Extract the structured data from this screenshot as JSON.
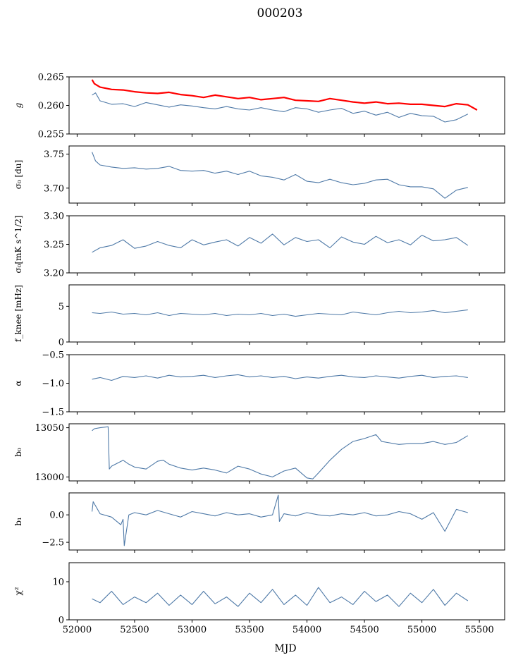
{
  "title": "000203",
  "xlabel": "MJD",
  "x_ticks": [
    "52000",
    "52500",
    "53000",
    "53500",
    "54000",
    "54500",
    "55000",
    "55500"
  ],
  "chart_data": [
    {
      "type": "line",
      "ylabel": "g",
      "xlim": [
        51930,
        55720
      ],
      "ylim": [
        0.255,
        0.265
      ],
      "y_ticks": [
        "0.255",
        "0.260",
        "0.265"
      ],
      "series": [
        {
          "color": "#ff0000",
          "x": [
            52130,
            52150,
            52200,
            52300,
            52400,
            52500,
            52600,
            52700,
            52800,
            52900,
            53000,
            53100,
            53200,
            53300,
            53400,
            53500,
            53600,
            53700,
            53800,
            53900,
            54000,
            54100,
            54200,
            54300,
            54400,
            54500,
            54600,
            54700,
            54800,
            54900,
            55000,
            55100,
            55200,
            55300,
            55400,
            55480
          ],
          "y": [
            0.2645,
            0.2638,
            0.2632,
            0.2628,
            0.2627,
            0.2624,
            0.2622,
            0.2621,
            0.2623,
            0.2619,
            0.2617,
            0.2614,
            0.2618,
            0.2615,
            0.2612,
            0.2614,
            0.261,
            0.2612,
            0.2614,
            0.2609,
            0.2608,
            0.2607,
            0.2612,
            0.2609,
            0.2606,
            0.2604,
            0.2606,
            0.2603,
            0.2604,
            0.2602,
            0.2602,
            0.26,
            0.2598,
            0.2603,
            0.2601,
            0.2592
          ]
        },
        {
          "color": "#4e79a7",
          "x": [
            52130,
            52160,
            52200,
            52300,
            52400,
            52500,
            52600,
            52700,
            52800,
            52900,
            53000,
            53100,
            53200,
            53300,
            53400,
            53500,
            53600,
            53700,
            53800,
            53900,
            54000,
            54100,
            54200,
            54300,
            54400,
            54500,
            54600,
            54700,
            54800,
            54900,
            55000,
            55100,
            55200,
            55300,
            55400
          ],
          "y": [
            0.2618,
            0.2622,
            0.2608,
            0.2602,
            0.2603,
            0.2598,
            0.2605,
            0.2601,
            0.2597,
            0.2601,
            0.2599,
            0.2596,
            0.2594,
            0.2598,
            0.2594,
            0.2592,
            0.2596,
            0.2592,
            0.2589,
            0.2596,
            0.2594,
            0.2588,
            0.2592,
            0.2595,
            0.2586,
            0.259,
            0.2583,
            0.2588,
            0.2579,
            0.2586,
            0.2582,
            0.2581,
            0.2571,
            0.2575,
            0.2585
          ]
        }
      ]
    },
    {
      "type": "line",
      "ylabel": "σ₀ [du]",
      "xlim": [
        51930,
        55720
      ],
      "ylim": [
        3.678,
        3.762
      ],
      "y_ticks": [
        "3.70",
        "3.75"
      ],
      "series": [
        {
          "color": "#4e79a7",
          "x": [
            52130,
            52160,
            52200,
            52300,
            52400,
            52500,
            52600,
            52700,
            52800,
            52900,
            53000,
            53100,
            53200,
            53300,
            53400,
            53500,
            53600,
            53700,
            53800,
            53900,
            54000,
            54100,
            54200,
            54300,
            54400,
            54500,
            54600,
            54700,
            54800,
            54900,
            55000,
            55100,
            55200,
            55300,
            55400
          ],
          "y": [
            3.753,
            3.74,
            3.734,
            3.731,
            3.729,
            3.73,
            3.728,
            3.729,
            3.732,
            3.726,
            3.725,
            3.726,
            3.722,
            3.725,
            3.72,
            3.725,
            3.718,
            3.716,
            3.712,
            3.72,
            3.71,
            3.708,
            3.713,
            3.708,
            3.705,
            3.707,
            3.712,
            3.713,
            3.705,
            3.702,
            3.702,
            3.699,
            3.685,
            3.697,
            3.701
          ]
        }
      ]
    },
    {
      "type": "line",
      "ylabel": "σ₀[mK s^1/2]",
      "xlim": [
        51930,
        55720
      ],
      "ylim": [
        3.2,
        3.3
      ],
      "y_ticks": [
        "3.20",
        "3.25",
        "3.30"
      ],
      "series": [
        {
          "color": "#4e79a7",
          "x": [
            52130,
            52200,
            52300,
            52400,
            52500,
            52600,
            52700,
            52800,
            52900,
            53000,
            53100,
            53200,
            53300,
            53400,
            53500,
            53600,
            53700,
            53800,
            53900,
            54000,
            54100,
            54200,
            54300,
            54400,
            54500,
            54600,
            54700,
            54800,
            54900,
            55000,
            55100,
            55200,
            55300,
            55400
          ],
          "y": [
            3.236,
            3.244,
            3.248,
            3.258,
            3.243,
            3.247,
            3.255,
            3.248,
            3.244,
            3.258,
            3.249,
            3.254,
            3.258,
            3.247,
            3.262,
            3.252,
            3.268,
            3.249,
            3.262,
            3.255,
            3.258,
            3.244,
            3.263,
            3.254,
            3.25,
            3.264,
            3.253,
            3.258,
            3.249,
            3.266,
            3.256,
            3.258,
            3.262,
            3.248
          ]
        }
      ]
    },
    {
      "type": "line",
      "ylabel": "f_knee [mHz]",
      "xlim": [
        51930,
        55720
      ],
      "ylim": [
        0,
        8
      ],
      "y_ticks": [
        "0",
        "5"
      ],
      "series": [
        {
          "color": "#4e79a7",
          "x": [
            52130,
            52200,
            52300,
            52400,
            52500,
            52600,
            52700,
            52800,
            52900,
            53000,
            53100,
            53200,
            53300,
            53400,
            53500,
            53600,
            53700,
            53800,
            53900,
            54000,
            54100,
            54200,
            54300,
            54400,
            54500,
            54600,
            54700,
            54800,
            54900,
            55000,
            55100,
            55200,
            55300,
            55400
          ],
          "y": [
            4.1,
            4.0,
            4.2,
            3.9,
            4.0,
            3.8,
            4.1,
            3.7,
            4.0,
            3.9,
            3.8,
            4.0,
            3.7,
            3.9,
            3.8,
            4.0,
            3.7,
            3.9,
            3.6,
            3.8,
            4.0,
            3.9,
            3.8,
            4.2,
            4.0,
            3.8,
            4.1,
            4.3,
            4.1,
            4.2,
            4.4,
            4.1,
            4.3,
            4.5
          ]
        }
      ]
    },
    {
      "type": "line",
      "ylabel": "α",
      "xlim": [
        51930,
        55720
      ],
      "ylim": [
        -1.5,
        -0.5
      ],
      "y_ticks": [
        "−1.5",
        "−1.0",
        "−0.5"
      ],
      "series": [
        {
          "color": "#4e79a7",
          "x": [
            52130,
            52200,
            52300,
            52400,
            52500,
            52600,
            52700,
            52800,
            52900,
            53000,
            53100,
            53200,
            53300,
            53400,
            53500,
            53600,
            53700,
            53800,
            53900,
            54000,
            54100,
            54200,
            54300,
            54400,
            54500,
            54600,
            54700,
            54800,
            54900,
            55000,
            55100,
            55200,
            55300,
            55400
          ],
          "y": [
            -0.93,
            -0.9,
            -0.95,
            -0.88,
            -0.9,
            -0.87,
            -0.91,
            -0.86,
            -0.89,
            -0.88,
            -0.86,
            -0.9,
            -0.87,
            -0.85,
            -0.89,
            -0.87,
            -0.9,
            -0.88,
            -0.92,
            -0.89,
            -0.91,
            -0.88,
            -0.86,
            -0.89,
            -0.9,
            -0.87,
            -0.89,
            -0.91,
            -0.88,
            -0.86,
            -0.9,
            -0.88,
            -0.87,
            -0.9
          ]
        }
      ]
    },
    {
      "type": "line",
      "ylabel": "b₀",
      "xlim": [
        51930,
        55720
      ],
      "ylim": [
        12996,
        13054
      ],
      "y_ticks": [
        "13000",
        "13050"
      ],
      "series": [
        {
          "color": "#4e79a7",
          "x": [
            52130,
            52150,
            52200,
            52270,
            52280,
            52300,
            52400,
            52450,
            52500,
            52600,
            52700,
            52750,
            52800,
            52900,
            53000,
            53100,
            53200,
            53300,
            53400,
            53500,
            53600,
            53700,
            53800,
            53900,
            54000,
            54050,
            54100,
            54200,
            54300,
            54400,
            54500,
            54600,
            54650,
            54700,
            54800,
            54900,
            55000,
            55100,
            55200,
            55300,
            55400
          ],
          "y": [
            13047,
            13049,
            13050,
            13051,
            13008,
            13011,
            13017,
            13013,
            13010,
            13008,
            13016,
            13017,
            13013,
            13009,
            13007,
            13009,
            13007,
            13004,
            13011,
            13008,
            13003,
            13000,
            13006,
            13009,
            12999,
            12998,
            13004,
            13017,
            13028,
            13036,
            13039,
            13043,
            13036,
            13035,
            13033,
            13034,
            13034,
            13036,
            13033,
            13035,
            13042
          ]
        }
      ]
    },
    {
      "type": "line",
      "ylabel": "b₁",
      "xlim": [
        51930,
        55720
      ],
      "ylim": [
        -3.2,
        2.0
      ],
      "y_ticks": [
        "−2.5",
        "0.0"
      ],
      "series": [
        {
          "color": "#4e79a7",
          "x": [
            52130,
            52140,
            52200,
            52300,
            52380,
            52400,
            52410,
            52450,
            52500,
            52600,
            52700,
            52800,
            52900,
            53000,
            53100,
            53200,
            53300,
            53400,
            53500,
            53600,
            53700,
            53750,
            53760,
            53800,
            53900,
            54000,
            54100,
            54200,
            54300,
            54400,
            54500,
            54600,
            54700,
            54800,
            54900,
            55000,
            55100,
            55200,
            55300,
            55400
          ],
          "y": [
            0.3,
            1.2,
            0.1,
            -0.2,
            -0.9,
            -0.4,
            -2.8,
            0.0,
            0.2,
            0.0,
            0.4,
            0.1,
            -0.2,
            0.3,
            0.1,
            -0.1,
            0.2,
            0.0,
            0.1,
            -0.2,
            0.0,
            1.8,
            -0.6,
            0.1,
            -0.1,
            0.2,
            0.0,
            -0.1,
            0.1,
            0.0,
            0.2,
            -0.1,
            0.0,
            0.3,
            0.1,
            -0.4,
            0.2,
            -1.5,
            0.5,
            0.2
          ]
        }
      ]
    },
    {
      "type": "line",
      "ylabel": "χ²",
      "xlim": [
        51930,
        55720
      ],
      "ylim": [
        0,
        15
      ],
      "y_ticks": [
        "0",
        "10"
      ],
      "series": [
        {
          "color": "#4e79a7",
          "x": [
            52130,
            52200,
            52300,
            52400,
            52500,
            52600,
            52700,
            52800,
            52900,
            53000,
            53100,
            53200,
            53300,
            53400,
            53500,
            53600,
            53700,
            53800,
            53900,
            54000,
            54100,
            54200,
            54300,
            54400,
            54500,
            54600,
            54700,
            54800,
            54900,
            55000,
            55100,
            55200,
            55300,
            55400
          ],
          "y": [
            5.5,
            4.5,
            7.5,
            4.0,
            6.0,
            4.5,
            7.0,
            3.8,
            6.5,
            4.0,
            7.5,
            4.2,
            6.0,
            3.5,
            7.0,
            4.5,
            8.0,
            4.0,
            6.5,
            3.8,
            8.5,
            4.5,
            6.0,
            4.0,
            7.5,
            4.8,
            6.5,
            3.5,
            7.0,
            4.5,
            8.0,
            3.8,
            7.0,
            5.0
          ]
        }
      ]
    }
  ]
}
